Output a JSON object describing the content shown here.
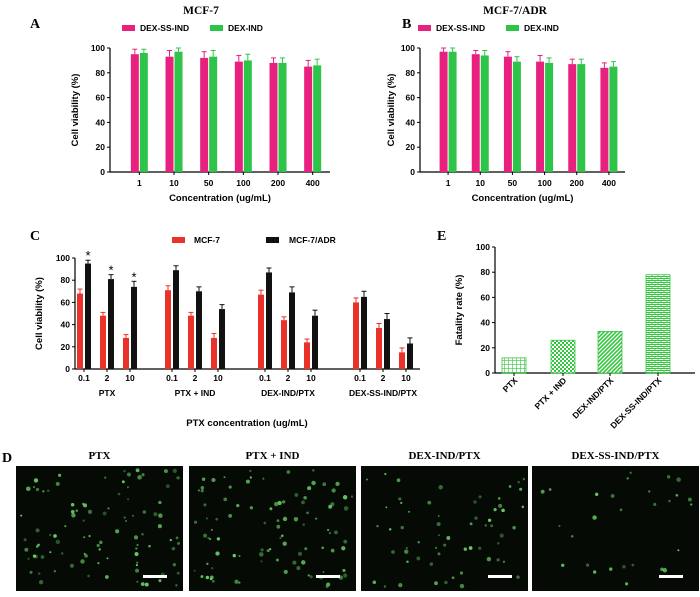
{
  "panel_labels": {
    "A": "A",
    "B": "B",
    "C": "C",
    "D": "D",
    "E": "E"
  },
  "colors": {
    "pink": "#e8207e",
    "green": "#2ec44a",
    "red": "#e8322a",
    "black": "#111111",
    "e_green": "#35c63f",
    "micro_bg": "#050a05",
    "scale_bar": "#ffffff"
  },
  "chart_data": [
    {
      "id": "A",
      "type": "bar",
      "title": "MCF-7",
      "categories": [
        "1",
        "10",
        "50",
        "100",
        "200",
        "400"
      ],
      "series": [
        {
          "name": "DEX-SS-IND",
          "values": [
            95,
            93,
            92,
            89,
            88,
            85
          ],
          "errors": [
            4,
            5,
            5,
            5,
            4,
            5
          ]
        },
        {
          "name": "DEX-IND",
          "values": [
            96,
            97,
            93,
            90,
            88,
            86
          ],
          "errors": [
            3,
            3,
            5,
            5,
            4,
            5
          ]
        }
      ],
      "xlabel": "Concentration (ug/mL)",
      "ylabel": "Cell viability (%)",
      "ylim": [
        0,
        100
      ],
      "yticks": [
        "0",
        "20",
        "40",
        "60",
        "80",
        "100"
      ]
    },
    {
      "id": "B",
      "type": "bar",
      "title": "MCF-7/ADR",
      "categories": [
        "1",
        "10",
        "50",
        "100",
        "200",
        "400"
      ],
      "series": [
        {
          "name": "DEX-SS-IND",
          "values": [
            97,
            95,
            93,
            89,
            87,
            84
          ],
          "errors": [
            3,
            3,
            4,
            5,
            4,
            4
          ]
        },
        {
          "name": "DEX-IND",
          "values": [
            97,
            94,
            89,
            88,
            87,
            85
          ],
          "errors": [
            3,
            4,
            4,
            4,
            4,
            4
          ]
        }
      ],
      "xlabel": "Concentration (ug/mL)",
      "ylabel": "Cell viability (%)",
      "ylim": [
        0,
        100
      ],
      "yticks": [
        "0",
        "20",
        "40",
        "60",
        "80",
        "100"
      ]
    },
    {
      "id": "C",
      "type": "bar",
      "groups": [
        "PTX",
        "PTX + IND",
        "DEX-IND/PTX",
        "DEX-SS-IND/PTX"
      ],
      "categories": [
        "0.1",
        "2",
        "10"
      ],
      "series": [
        {
          "name": "MCF-7",
          "values": [
            [
              68,
              48,
              28
            ],
            [
              71,
              48,
              28
            ],
            [
              67,
              44,
              24
            ],
            [
              60,
              37,
              15
            ]
          ],
          "errors": [
            [
              4,
              3,
              3
            ],
            [
              4,
              3,
              4
            ],
            [
              4,
              3,
              3
            ],
            [
              4,
              4,
              4
            ]
          ]
        },
        {
          "name": "MCF-7/ADR",
          "values": [
            [
              95,
              81,
              74
            ],
            [
              89,
              70,
              54
            ],
            [
              87,
              69,
              48
            ],
            [
              65,
              45,
              23
            ]
          ],
          "errors": [
            [
              3,
              4,
              5
            ],
            [
              4,
              4,
              4
            ],
            [
              4,
              5,
              5
            ],
            [
              5,
              5,
              5
            ]
          ]
        }
      ],
      "significance": [
        {
          "group": 0,
          "category": 0,
          "label": "*"
        },
        {
          "group": 0,
          "category": 1,
          "label": "*"
        },
        {
          "group": 0,
          "category": 2,
          "label": "*"
        }
      ],
      "xlabel": "PTX concentration (ug/mL)",
      "ylabel": "Cell viability (%)",
      "ylim": [
        0,
        100
      ],
      "yticks": [
        "0",
        "20",
        "40",
        "60",
        "80",
        "100"
      ]
    },
    {
      "id": "E",
      "type": "bar",
      "categories": [
        "PTX",
        "PTX + IND",
        "DEX-IND/PTX",
        "DEX-SS-IND/PTX"
      ],
      "values": [
        12,
        26,
        33,
        78
      ],
      "patterns": [
        "grid",
        "checker",
        "diagonal",
        "brick"
      ],
      "xlabel": "",
      "ylabel": "Fatality rate (%)",
      "ylim": [
        0,
        100
      ],
      "yticks": [
        "0",
        "20",
        "40",
        "60",
        "80",
        "100"
      ]
    }
  ],
  "micrographs": [
    {
      "title": "PTX",
      "density": "high"
    },
    {
      "title": "PTX + IND",
      "density": "high"
    },
    {
      "title": "DEX-IND/PTX",
      "density": "medium"
    },
    {
      "title": "DEX-SS-IND/PTX",
      "density": "low"
    }
  ]
}
